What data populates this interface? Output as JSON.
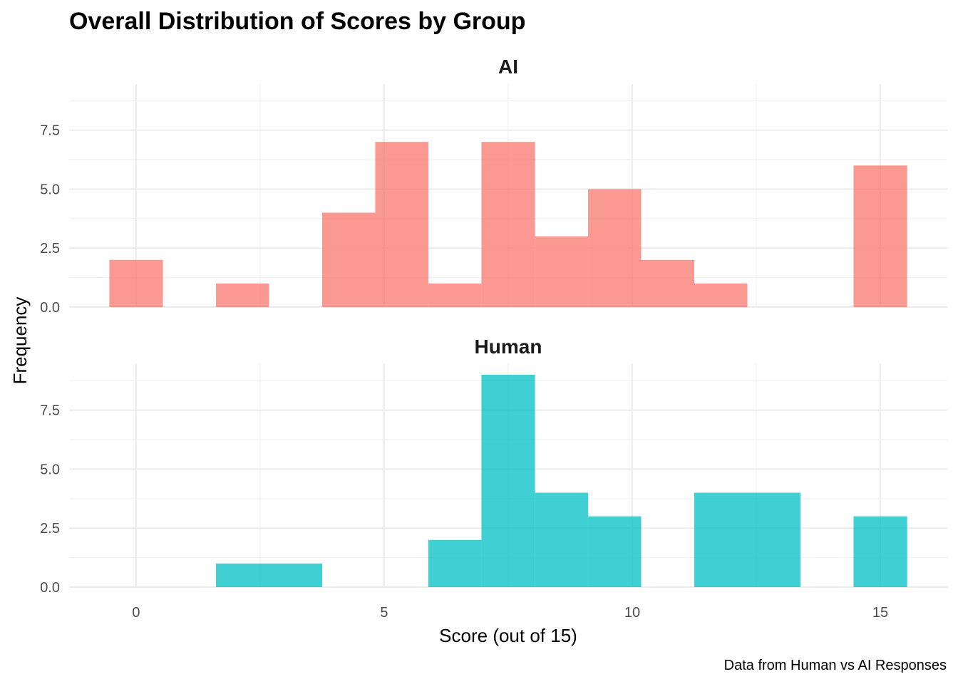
{
  "chart_data": {
    "type": "bar",
    "title": "Overall Distribution of Scores by Group",
    "xlabel": "Score (out of 15)",
    "ylabel": "Frequency",
    "caption": "Data from Human vs AI Responses",
    "xlim": [
      -1.35,
      16.35
    ],
    "ylim": [
      0,
      9.45
    ],
    "x_ticks": [
      0,
      5,
      10,
      15
    ],
    "x_tick_labels": [
      "0",
      "5",
      "10",
      "15"
    ],
    "y_ticks": [
      0,
      2.5,
      5,
      7.5
    ],
    "y_tick_labels": [
      "0.0",
      "2.5",
      "5.0",
      "7.5"
    ],
    "grid": true,
    "bin_edges": [
      -0.54,
      0.54,
      1.61,
      2.68,
      3.75,
      4.82,
      5.89,
      6.96,
      8.04,
      9.11,
      10.18,
      11.25,
      12.32,
      13.39,
      14.46,
      15.54
    ],
    "panels": [
      {
        "name": "AI",
        "color": "#F8766D",
        "counts": [
          2,
          0,
          1,
          0,
          4,
          7,
          1,
          7,
          3,
          5,
          2,
          1,
          0,
          0,
          6
        ]
      },
      {
        "name": "Human",
        "color": "#00BFC4",
        "counts": [
          0,
          0,
          1,
          1,
          0,
          0,
          2,
          9,
          4,
          3,
          0,
          4,
          4,
          0,
          3
        ]
      }
    ]
  }
}
